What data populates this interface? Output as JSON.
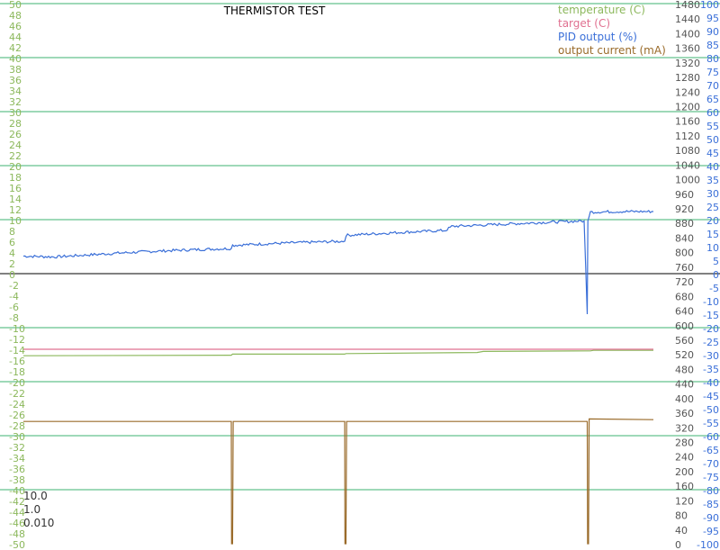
{
  "chart_data": {
    "type": "line",
    "title": "THERMISTOR TEST",
    "legend_placement": "top-right",
    "grid": true,
    "axes": {
      "left": {
        "name": "temperature (C)",
        "range": [
          -50,
          50
        ],
        "ticks": [
          50,
          48,
          46,
          44,
          42,
          40,
          38,
          36,
          34,
          32,
          30,
          28,
          26,
          24,
          22,
          20,
          18,
          16,
          14,
          12,
          10,
          8,
          6,
          4,
          2,
          0,
          -2,
          -4,
          -6,
          -8,
          -10,
          -12,
          -14,
          -16,
          -18,
          -20,
          -22,
          -24,
          -26,
          -28,
          -30,
          -32,
          -34,
          -36,
          -38,
          -40,
          -42,
          -44,
          -46,
          -48,
          -50
        ],
        "color": "#8cb85c"
      },
      "current": {
        "name": "output current (mA)",
        "range": [
          0,
          1480
        ],
        "ticks": [
          0,
          40,
          80,
          120,
          160,
          200,
          240,
          280,
          320,
          360,
          400,
          440,
          480,
          520,
          560,
          600,
          640,
          680,
          720,
          760,
          800,
          840,
          880,
          920,
          960,
          1000,
          1040,
          1080,
          1120,
          1160,
          1200,
          1240,
          1280,
          1320,
          1360,
          1400,
          1440,
          1480
        ],
        "color": "#555555"
      },
      "pid": {
        "name": "PID output (%)",
        "range": [
          -100,
          100
        ],
        "ticks": [
          100,
          95,
          90,
          85,
          80,
          75,
          70,
          65,
          60,
          55,
          50,
          45,
          40,
          35,
          30,
          25,
          20,
          15,
          10,
          5,
          0,
          -5,
          -10,
          -15,
          -20,
          -25,
          -30,
          -35,
          -40,
          -45,
          -50,
          -55,
          -60,
          -65,
          -70,
          -75,
          -80,
          -85,
          -90,
          -95,
          -100
        ],
        "color": "#3a6fd8"
      }
    },
    "grid_values": [
      50,
      40,
      30,
      20,
      10,
      -10,
      -20,
      -30,
      -40
    ],
    "zero_line": 0,
    "x_range": [
      0,
      100
    ],
    "series": [
      {
        "name": "temperature (C)",
        "color": "#8cb85c",
        "axis": "left",
        "x": [
          0,
          33,
          33.2,
          51,
          51.2,
          72,
          73,
          90,
          90.5,
          100
        ],
        "values": [
          -15.2,
          -15.1,
          -14.9,
          -14.9,
          -14.8,
          -14.6,
          -14.4,
          -14.3,
          -14.2,
          -14.2
        ]
      },
      {
        "name": "target (C)",
        "color": "#e07090",
        "axis": "left",
        "x": [
          0,
          100
        ],
        "values": [
          -14,
          -14
        ]
      },
      {
        "name": "PID output (%)",
        "color": "#3a6fd8",
        "axis": "pid",
        "x": [
          0,
          5,
          10,
          15,
          20,
          25,
          30,
          33,
          33.2,
          40,
          45,
          51,
          51.2,
          60,
          67,
          68,
          75,
          85,
          89,
          89.5,
          89.6,
          90,
          95,
          100
        ],
        "values": [
          6.5,
          6.2,
          6.9,
          7.6,
          8.2,
          8.7,
          9.1,
          9.3,
          10.5,
          11.2,
          11.6,
          12,
          14.2,
          15.3,
          16,
          17.5,
          18.2,
          19.2,
          19.5,
          -15,
          19.5,
          22.8,
          23,
          23
        ],
        "noise": 0.5
      },
      {
        "name": "output current (mA)",
        "color": "#9a6b2a",
        "axis": "current",
        "x": [
          0,
          33,
          33.05,
          33.2,
          33.3,
          51,
          51.05,
          51.2,
          51.3,
          89.5,
          89.55,
          89.7,
          89.8,
          100
        ],
        "values": [
          335,
          335,
          0,
          0,
          335,
          335,
          0,
          0,
          335,
          335,
          0,
          0,
          342,
          340
        ]
      }
    ],
    "annotations": [
      "10.0",
      "1.0",
      "0.010"
    ]
  }
}
